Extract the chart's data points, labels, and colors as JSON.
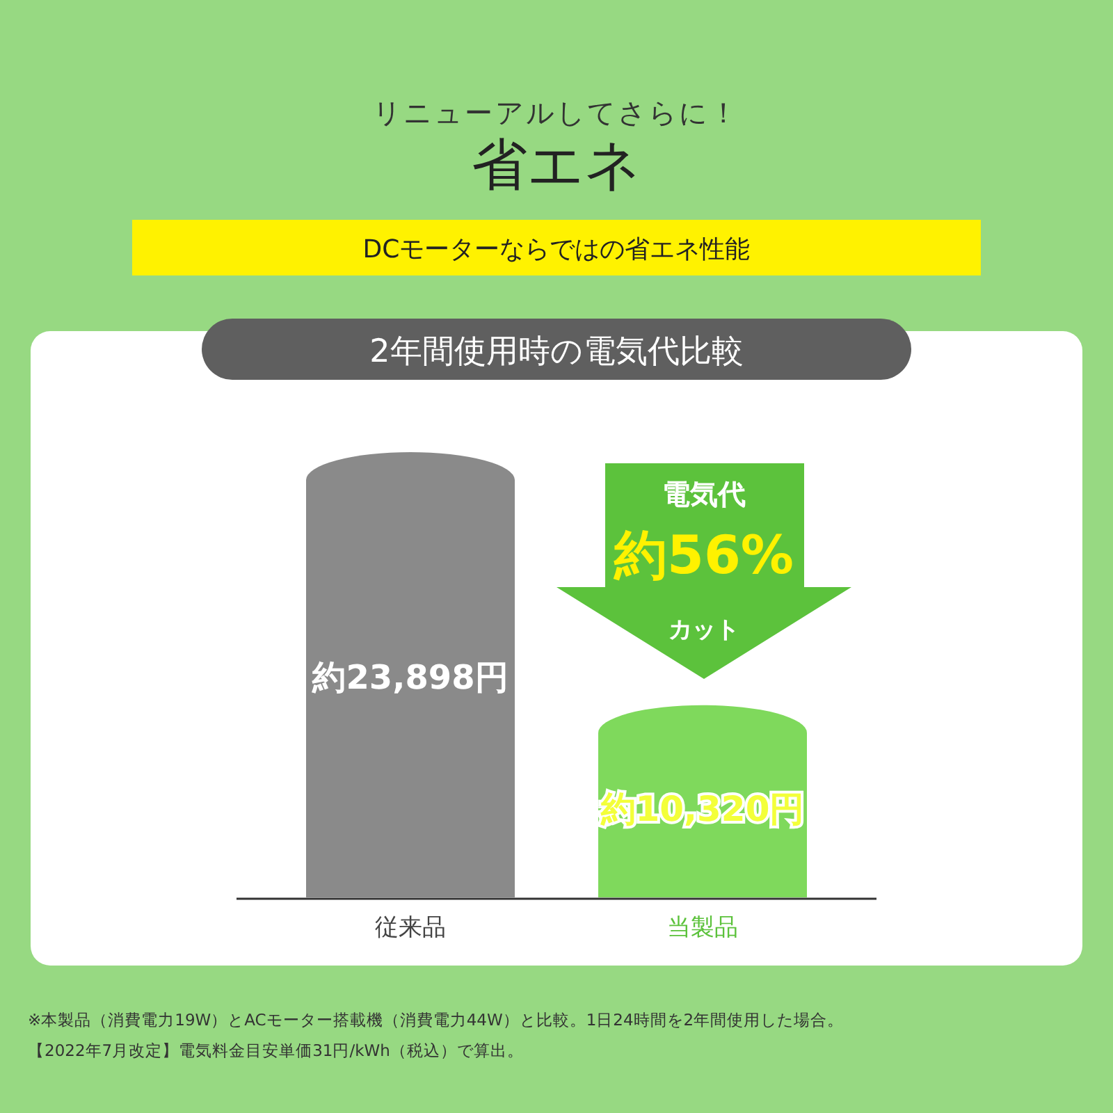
{
  "chart_data": {
    "type": "bar",
    "title": "2年間使用時の電気代比較",
    "categories": [
      "従来品",
      "当製品"
    ],
    "values": [
      23898,
      10320
    ],
    "value_labels": [
      "約23,898円",
      "約10,320円"
    ],
    "colors": [
      "#8a8a8a",
      "#7fd95c"
    ],
    "annotations": [
      "リニューアルしてさらに！",
      "省エネ",
      "DCモーターならではの省エネ性能",
      "電気代",
      "約56%",
      "カット",
      "※本製品（消費電力19W）とACモーター搭載機（消費電力44W）と比較。1日24時間を2年間使用した場合。",
      "【2022年7月改定】電気料金目安単価31円/kWh（税込）で算出。"
    ]
  }
}
